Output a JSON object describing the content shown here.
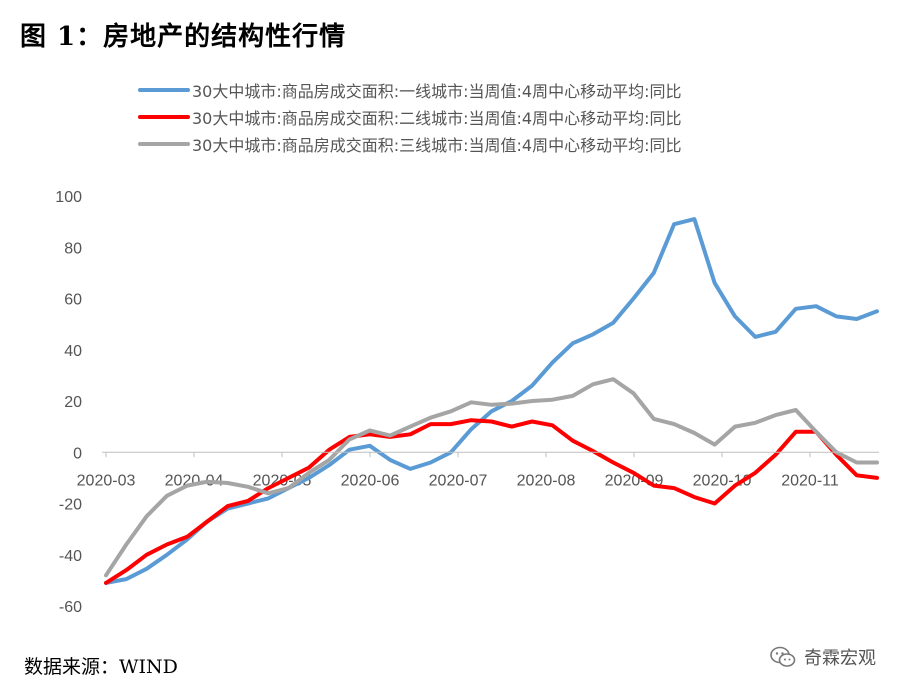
{
  "title": "图 1：房地产的结构性行情",
  "source": "数据来源：WIND",
  "watermark": "奇霖宏观",
  "chart_data": {
    "type": "line",
    "x_ticks": [
      "2020-03",
      "2020-04",
      "2020-05",
      "2020-06",
      "2020-07",
      "2020-08",
      "2020-09",
      "2020-10",
      "2020-11"
    ],
    "ylim": [
      -60,
      100
    ],
    "y_ticks": [
      100,
      80,
      60,
      40,
      20,
      0,
      -20,
      -40,
      -60
    ],
    "y_tick_labels": [
      "100",
      "80",
      "60",
      "40",
      "20",
      "0",
      "-20",
      "-40",
      "-60"
    ],
    "grid": false,
    "legend_position": "top",
    "series": [
      {
        "name": "30大中城市:商品房成交面积:一线城市:当周值:4周中心移动平均:同比",
        "color": "#5B9BD5",
        "values": [
          -51,
          -49.5,
          -45.5,
          -40,
          -34,
          -27,
          -22,
          -20,
          -18,
          -14,
          -10,
          -5,
          1,
          2.5,
          -3,
          -6.5,
          -4,
          0,
          9,
          16,
          20,
          26,
          35,
          42.5,
          46,
          50.5,
          60,
          70,
          89,
          91,
          66,
          53,
          45,
          47,
          56,
          57,
          53,
          52,
          55
        ]
      },
      {
        "name": "30大中城市:商品房成交面积:二线城市:当周值:4周中心移动平均:同比",
        "color": "#FF0000",
        "values": [
          -51,
          -46,
          -40,
          -36,
          -33,
          -27,
          -21,
          -19,
          -14,
          -10,
          -6,
          1,
          6,
          7,
          6,
          7,
          11,
          11,
          12.5,
          12,
          10,
          12,
          10.5,
          4.5,
          0.5,
          -4,
          -8,
          -13,
          -14,
          -17.5,
          -20,
          -13,
          -8,
          -1,
          8,
          8,
          -1,
          -9,
          -10
        ]
      },
      {
        "name": "30大中城市:商品房成交面积:三线城市:当周值:4周中心移动平均:同比",
        "color": "#A5A5A5",
        "values": [
          -48,
          -36,
          -25,
          -17,
          -13,
          -11.5,
          -12,
          -13.5,
          -16,
          -14,
          -8,
          -3,
          5,
          8.5,
          6.5,
          10,
          13.5,
          16,
          19.5,
          18.5,
          19,
          20,
          20.5,
          22,
          26.5,
          28.5,
          23,
          13,
          11,
          7.5,
          3,
          10,
          11.5,
          14.5,
          16.5,
          8,
          0,
          -4,
          -4
        ]
      }
    ]
  }
}
